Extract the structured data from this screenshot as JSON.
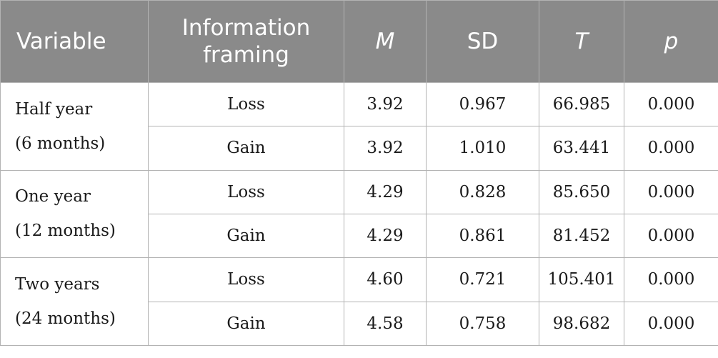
{
  "header": {
    "variable": "Variable",
    "framing_line1": "Information",
    "framing_line2": "framing",
    "m": "M",
    "sd": "SD",
    "t": "T",
    "p": "p"
  },
  "groups": [
    {
      "label_line1": "Half year",
      "label_line2": "(6 months)",
      "rows": [
        {
          "framing": "Loss",
          "m": "3.92",
          "sd": "0.967",
          "t": "66.985",
          "p": "0.000"
        },
        {
          "framing": "Gain",
          "m": "3.92",
          "sd": "1.010",
          "t": "63.441",
          "p": "0.000"
        }
      ]
    },
    {
      "label_line1": "One year",
      "label_line2": "(12 months)",
      "rows": [
        {
          "framing": "Loss",
          "m": "4.29",
          "sd": "0.828",
          "t": "85.650",
          "p": "0.000"
        },
        {
          "framing": "Gain",
          "m": "4.29",
          "sd": "0.861",
          "t": "81.452",
          "p": "0.000"
        }
      ]
    },
    {
      "label_line1": "Two years",
      "label_line2": "(24 months)",
      "rows": [
        {
          "framing": "Loss",
          "m": "4.60",
          "sd": "0.721",
          "t": "105.401",
          "p": "0.000"
        },
        {
          "framing": "Gain",
          "m": "4.58",
          "sd": "0.758",
          "t": "98.682",
          "p": "0.000"
        }
      ]
    }
  ],
  "colors": {
    "header_background": "#8a8a8a",
    "header_text": "#ffffff",
    "grid_lines": "#b3b3b3",
    "body_text": "#1a1a1a"
  }
}
